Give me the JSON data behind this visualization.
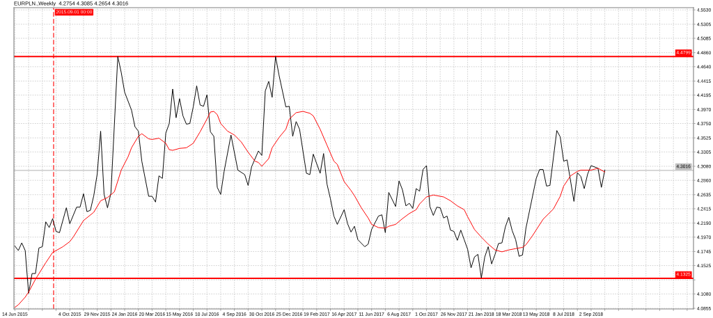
{
  "chart_data": {
    "type": "line",
    "title": "EURPLN.,Weekly  4.2754 4.3085 4.2654 4.3016",
    "series": [
      {
        "color": "#000000",
        "x": [
          "2015-06-14",
          "2015-06-21",
          "2015-06-28",
          "2015-07-05",
          "2015-07-12",
          "2015-07-19",
          "2015-07-26",
          "2015-08-02",
          "2015-08-09",
          "2015-08-16",
          "2015-08-23",
          "2015-08-30",
          "2015-09-06",
          "2015-09-13",
          "2015-09-27",
          "2015-10-04",
          "2015-10-18",
          "2015-10-25",
          "2015-11-01",
          "2015-11-08",
          "2015-11-15",
          "2015-11-22",
          "2015-11-29",
          "2015-12-06",
          "2015-12-13",
          "2015-12-20",
          "2015-12-27",
          "2016-01-10",
          "2016-01-17",
          "2016-01-24",
          "2016-02-07",
          "2016-02-14",
          "2016-02-21",
          "2016-02-28",
          "2016-03-13",
          "2016-03-20",
          "2016-03-27",
          "2016-04-03",
          "2016-04-10",
          "2016-04-17",
          "2016-04-24",
          "2016-05-01",
          "2016-05-08",
          "2016-05-15",
          "2016-05-22",
          "2016-05-29",
          "2016-06-05",
          "2016-06-12",
          "2016-06-19",
          "2016-06-26",
          "2016-07-03",
          "2016-07-10",
          "2016-07-17",
          "2016-07-24",
          "2016-07-31",
          "2016-08-07",
          "2016-08-14",
          "2016-08-28",
          "2016-09-11",
          "2016-09-25",
          "2016-10-02",
          "2016-10-09",
          "2016-10-23",
          "2016-10-30",
          "2016-11-06",
          "2016-11-13",
          "2016-11-20",
          "2016-11-27",
          "2016-12-04",
          "2016-12-18",
          "2016-12-25",
          "2017-01-01",
          "2017-01-08",
          "2017-01-15",
          "2017-01-29",
          "2017-02-05",
          "2017-02-12",
          "2017-02-26",
          "2017-03-05",
          "2017-03-12",
          "2017-03-19",
          "2017-03-26",
          "2017-04-02",
          "2017-04-16",
          "2017-04-23",
          "2017-04-30",
          "2017-05-07",
          "2017-05-14",
          "2017-05-28",
          "2017-06-04",
          "2017-06-11",
          "2017-06-25",
          "2017-07-02",
          "2017-07-09",
          "2017-07-16",
          "2017-07-30",
          "2017-08-06",
          "2017-08-13",
          "2017-08-20",
          "2017-08-27",
          "2017-09-03",
          "2017-09-10",
          "2017-09-17",
          "2017-09-24",
          "2017-10-01",
          "2017-10-08",
          "2017-10-15",
          "2017-10-22",
          "2017-10-29",
          "2017-11-05",
          "2017-11-12",
          "2017-11-19",
          "2017-11-26",
          "2017-12-03",
          "2017-12-10",
          "2017-12-17",
          "2017-12-24",
          "2017-12-31",
          "2018-01-07",
          "2018-01-14",
          "2018-01-21",
          "2018-01-28",
          "2018-02-04",
          "2018-02-11",
          "2018-02-18",
          "2018-02-25",
          "2018-03-04",
          "2018-03-11",
          "2018-03-18",
          "2018-03-25",
          "2018-04-01",
          "2018-04-08",
          "2018-04-15",
          "2018-04-22",
          "2018-05-13",
          "2018-05-20",
          "2018-05-27",
          "2018-06-03",
          "2018-06-10",
          "2018-06-24",
          "2018-07-01",
          "2018-07-08",
          "2018-07-15",
          "2018-07-29",
          "2018-08-05",
          "2018-08-12",
          "2018-08-19",
          "2018-08-26",
          "2018-09-02",
          "2018-09-16",
          "2018-09-23",
          "2018-09-30"
        ],
        "values": [
          4.183,
          4.176,
          4.188,
          4.176,
          4.109,
          4.14,
          4.14,
          4.18,
          4.182,
          4.221,
          4.212,
          4.226,
          4.206,
          4.204,
          4.243,
          4.218,
          4.244,
          4.244,
          4.265,
          4.237,
          4.239,
          4.262,
          4.296,
          4.363,
          4.264,
          4.243,
          4.266,
          4.48,
          4.455,
          4.424,
          4.396,
          4.37,
          4.363,
          4.316,
          4.261,
          4.261,
          4.252,
          4.293,
          4.289,
          4.36,
          4.375,
          4.429,
          4.384,
          4.414,
          4.387,
          4.374,
          4.375,
          4.401,
          4.434,
          4.404,
          4.402,
          4.42,
          4.362,
          4.355,
          4.275,
          4.264,
          4.3,
          4.357,
          4.302,
          4.295,
          4.278,
          4.307,
          4.332,
          4.325,
          4.426,
          4.441,
          4.416,
          4.48,
          4.451,
          4.401,
          4.402,
          4.355,
          4.378,
          4.366,
          4.297,
          4.295,
          4.327,
          4.297,
          4.328,
          4.28,
          4.257,
          4.23,
          4.217,
          4.24,
          4.218,
          4.205,
          4.214,
          4.193,
          4.182,
          4.186,
          4.209,
          4.23,
          4.232,
          4.204,
          4.267,
          4.245,
          4.285,
          4.271,
          4.246,
          4.25,
          4.242,
          4.273,
          4.269,
          4.303,
          4.309,
          4.245,
          4.231,
          4.244,
          4.243,
          4.227,
          4.23,
          4.208,
          4.206,
          4.192,
          4.208,
          4.193,
          4.178,
          4.149,
          4.166,
          4.17,
          4.133,
          4.166,
          4.182,
          4.155,
          4.17,
          4.187,
          4.188,
          4.213,
          4.228,
          4.207,
          4.193,
          4.167,
          4.169,
          4.211,
          4.289,
          4.303,
          4.303,
          4.277,
          4.278,
          4.364,
          4.354,
          4.316,
          4.318,
          4.253,
          4.298,
          4.292,
          4.273,
          4.296,
          4.309,
          4.305,
          4.275,
          4.302
        ]
      },
      {
        "color": "#ff0000",
        "x": [
          "2015-06-14",
          "2015-06-21",
          "2015-07-05",
          "2015-07-12",
          "2015-07-26",
          "2015-08-16",
          "2015-08-30",
          "2015-09-20",
          "2015-10-04",
          "2015-10-11",
          "2015-11-01",
          "2015-11-22",
          "2015-12-06",
          "2015-12-20",
          "2016-01-03",
          "2016-01-17",
          "2016-01-31",
          "2016-02-07",
          "2016-02-21",
          "2016-02-28",
          "2016-03-13",
          "2016-03-20",
          "2016-04-03",
          "2016-04-17",
          "2016-04-24",
          "2016-05-01",
          "2016-05-15",
          "2016-05-29",
          "2016-06-12",
          "2016-06-26",
          "2016-07-10",
          "2016-07-17",
          "2016-07-24",
          "2016-07-31",
          "2016-08-07",
          "2016-08-21",
          "2016-09-04",
          "2016-09-18",
          "2016-10-02",
          "2016-10-16",
          "2016-10-23",
          "2016-10-30",
          "2016-11-13",
          "2016-11-20",
          "2016-12-04",
          "2016-12-18",
          "2016-12-25",
          "2017-01-08",
          "2017-01-22",
          "2017-02-05",
          "2017-02-12",
          "2017-02-26",
          "2017-03-12",
          "2017-03-26",
          "2017-04-02",
          "2017-04-16",
          "2017-04-30",
          "2017-05-07",
          "2017-05-21",
          "2017-06-04",
          "2017-06-11",
          "2017-06-25",
          "2017-07-09",
          "2017-07-16",
          "2017-07-30",
          "2017-08-13",
          "2017-08-27",
          "2017-09-10",
          "2017-09-17",
          "2017-10-01",
          "2017-10-15",
          "2017-11-05",
          "2017-11-19",
          "2017-12-03",
          "2017-12-17",
          "2017-12-24",
          "2018-01-07",
          "2018-01-21",
          "2018-02-04",
          "2018-02-18",
          "2018-03-04",
          "2018-03-18",
          "2018-04-01",
          "2018-04-15",
          "2018-04-22",
          "2018-05-06",
          "2018-05-27",
          "2018-06-17",
          "2018-07-01",
          "2018-07-08",
          "2018-07-22",
          "2018-08-05",
          "2018-08-12",
          "2018-08-26",
          "2018-09-02",
          "2018-09-16",
          "2018-09-30"
        ],
        "values": [
          4.087,
          4.091,
          4.103,
          4.111,
          4.131,
          4.157,
          4.173,
          4.182,
          4.19,
          4.197,
          4.223,
          4.236,
          4.254,
          4.259,
          4.268,
          4.302,
          4.323,
          4.337,
          4.355,
          4.359,
          4.351,
          4.35,
          4.352,
          4.344,
          4.334,
          4.333,
          4.336,
          4.337,
          4.344,
          4.362,
          4.382,
          4.393,
          4.394,
          4.389,
          4.375,
          4.363,
          4.357,
          4.346,
          4.33,
          4.316,
          4.314,
          4.308,
          4.32,
          4.337,
          4.353,
          4.366,
          4.382,
          4.392,
          4.394,
          4.391,
          4.387,
          4.366,
          4.341,
          4.316,
          4.311,
          4.284,
          4.27,
          4.262,
          4.243,
          4.227,
          4.217,
          4.212,
          4.211,
          4.214,
          4.217,
          4.226,
          4.234,
          4.24,
          4.249,
          4.26,
          4.263,
          4.26,
          4.254,
          4.246,
          4.24,
          4.229,
          4.209,
          4.197,
          4.186,
          4.177,
          4.174,
          4.177,
          4.179,
          4.181,
          4.185,
          4.2,
          4.225,
          4.241,
          4.261,
          4.277,
          4.293,
          4.3,
          4.302,
          4.302,
          4.302,
          4.305,
          4.299
        ]
      }
    ],
    "xlim": [
      "2015-06-12",
      "2019-03-30"
    ],
    "xticks": [
      {
        "value": "2015-06-14",
        "label": "14 Jun 2015"
      },
      {
        "value": "2015-07-12",
        "label": null
      },
      {
        "value": "2015-08-09",
        "label": null
      },
      {
        "value": "2015-09-06",
        "label": null
      },
      {
        "value": "2015-10-04",
        "label": "4 Oct 2015"
      },
      {
        "value": "2015-11-01",
        "label": null
      },
      {
        "value": "2015-11-29",
        "label": "29 Nov 2015"
      },
      {
        "value": "2015-12-27",
        "label": null
      },
      {
        "value": "2016-01-24",
        "label": "24 Jan 2016"
      },
      {
        "value": "2016-02-21",
        "label": null
      },
      {
        "value": "2016-03-20",
        "label": "20 Mar 2016"
      },
      {
        "value": "2016-04-17",
        "label": null
      },
      {
        "value": "2016-05-15",
        "label": "15 May 2016"
      },
      {
        "value": "2016-06-12",
        "label": null
      },
      {
        "value": "2016-07-10",
        "label": "10 Jul 2016"
      },
      {
        "value": "2016-08-07",
        "label": null
      },
      {
        "value": "2016-09-04",
        "label": "4 Sep 2016"
      },
      {
        "value": "2016-10-02",
        "label": null
      },
      {
        "value": "2016-10-30",
        "label": "30 Oct 2016"
      },
      {
        "value": "2016-11-27",
        "label": null
      },
      {
        "value": "2016-12-25",
        "label": "25 Dec 2016"
      },
      {
        "value": "2017-01-22",
        "label": null
      },
      {
        "value": "2017-02-19",
        "label": "19 Feb 2017"
      },
      {
        "value": "2017-03-19",
        "label": null
      },
      {
        "value": "2017-04-16",
        "label": "16 Apr 2017"
      },
      {
        "value": "2017-05-14",
        "label": null
      },
      {
        "value": "2017-06-11",
        "label": "11 Jun 2017"
      },
      {
        "value": "2017-07-09",
        "label": null
      },
      {
        "value": "2017-08-06",
        "label": "6 Aug 2017"
      },
      {
        "value": "2017-09-03",
        "label": null
      },
      {
        "value": "2017-10-01",
        "label": "1 Oct 2017"
      },
      {
        "value": "2017-10-29",
        "label": null
      },
      {
        "value": "2017-11-26",
        "label": "26 Nov 2017"
      },
      {
        "value": "2017-12-24",
        "label": null
      },
      {
        "value": "2018-01-21",
        "label": "21 Jan 2018"
      },
      {
        "value": "2018-02-18",
        "label": null
      },
      {
        "value": "2018-03-18",
        "label": "18 Mar 2018"
      },
      {
        "value": "2018-04-15",
        "label": null
      },
      {
        "value": "2018-05-13",
        "label": "13 May 2018"
      },
      {
        "value": "2018-06-10",
        "label": null
      },
      {
        "value": "2018-07-08",
        "label": "8 Jul 2018"
      },
      {
        "value": "2018-08-05",
        "label": null
      },
      {
        "value": "2018-09-02",
        "label": "2 Sep 2018"
      },
      {
        "value": "2018-09-30",
        "label": null
      },
      {
        "value": "2018-10-28",
        "label": null
      },
      {
        "value": "2018-11-25",
        "label": null
      },
      {
        "value": "2018-12-23",
        "label": null
      },
      {
        "value": "2019-01-20",
        "label": null
      },
      {
        "value": "2019-02-17",
        "label": null
      },
      {
        "value": "2019-03-17",
        "label": null
      }
    ],
    "ylim": [
      4.0845,
      4.5565
    ],
    "yticks": [
      {
        "value": 4.553,
        "label": "4.5530"
      },
      4.5305,
      4.5085,
      {
        "value": 4.486,
        "label": "4.4860"
      },
      {
        "value": 4.464,
        "label": "4.4640"
      },
      4.4415,
      4.4195,
      {
        "value": 4.397,
        "label": "4.3970"
      },
      {
        "value": 4.375,
        "label": "4.3750"
      },
      4.3525,
      4.3305,
      {
        "value": 4.308,
        "label": "4.3080"
      },
      {
        "value": 4.286,
        "label": "4.2860"
      },
      4.2635,
      4.2415,
      {
        "value": 4.219,
        "label": "4.2190"
      },
      {
        "value": 4.197,
        "label": "4.1970"
      },
      4.1745,
      4.1525,
      {
        "value": 4.13,
        "label": null
      },
      {
        "value": 4.108,
        "label": "4.1080"
      },
      4.0855
    ],
    "ref_lines": [
      {
        "axis": "y",
        "value": 4.4799,
        "label": "4.4799",
        "color": "#ff0000"
      },
      {
        "axis": "y",
        "value": 4.1325,
        "label": "4.1325",
        "color": "#ff0000"
      },
      {
        "axis": "y",
        "value": 4.3016,
        "label": "4.3016",
        "color": "#c0c0c0"
      },
      {
        "axis": "x",
        "value": "2015-09-01",
        "label": "2015.09.01 00:00",
        "color": "#ff0000",
        "line_style": "dashed"
      }
    ],
    "grid": true
  }
}
